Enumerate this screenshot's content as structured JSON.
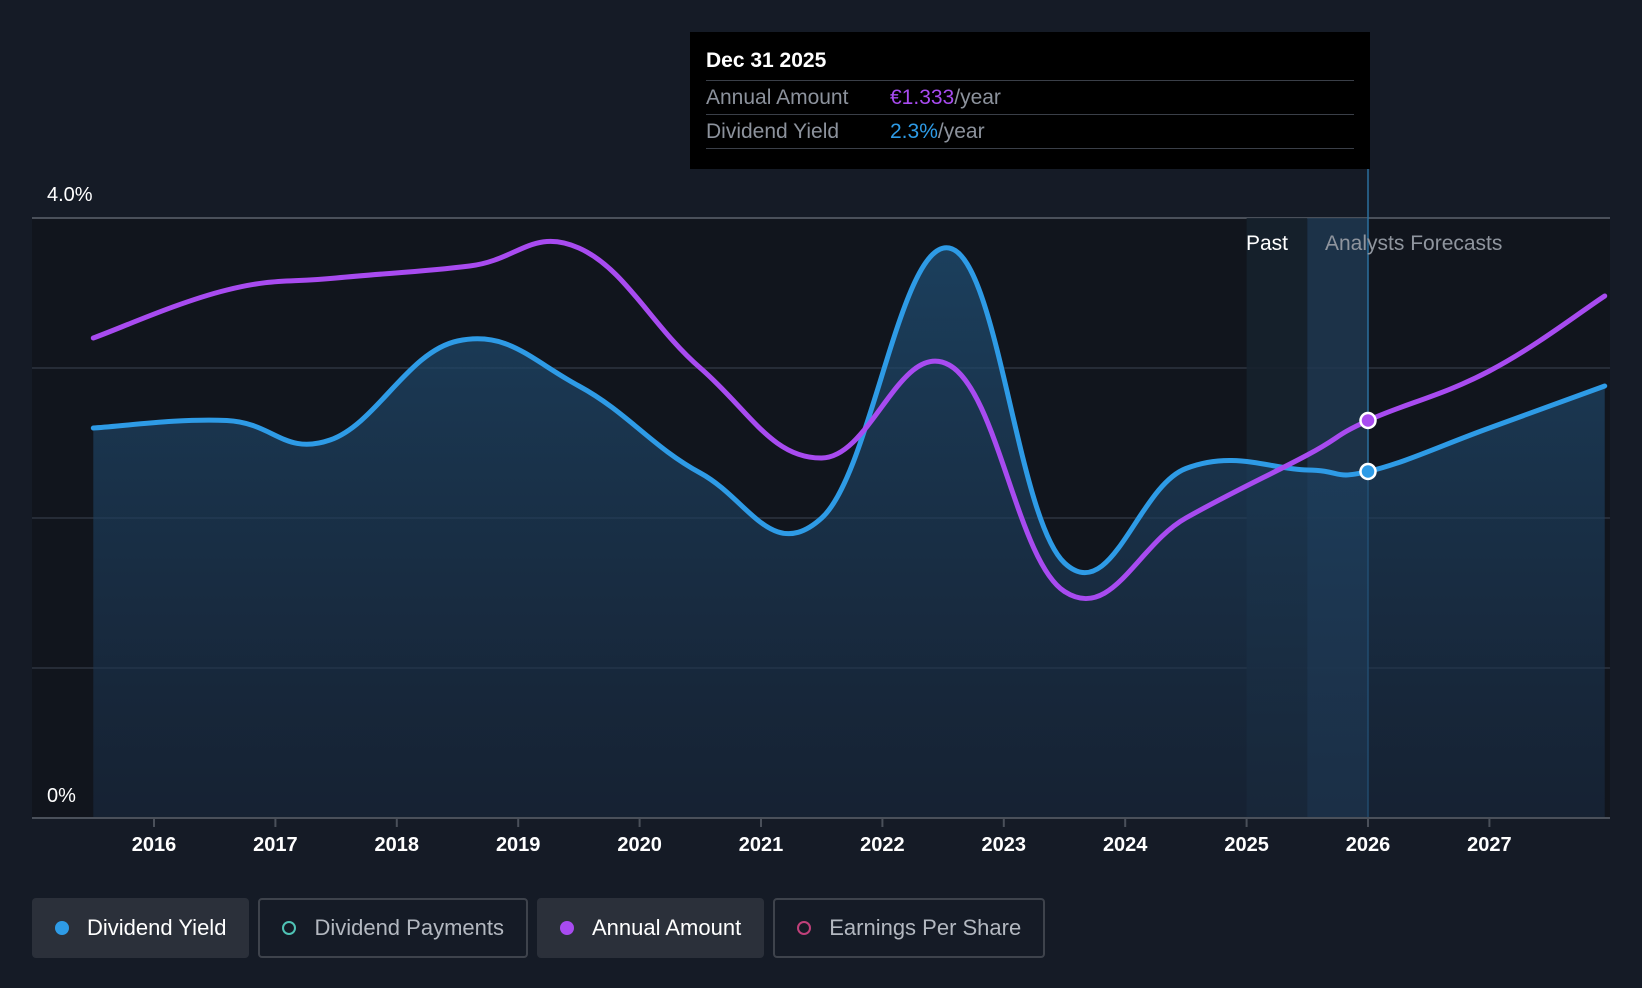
{
  "chart_data": {
    "type": "line",
    "y_axis": {
      "min_label": "0%",
      "max_label": "4.0%",
      "ylim": [
        0,
        4.0
      ],
      "gridlines": [
        0,
        1.0,
        2.0,
        3.0,
        4.0
      ]
    },
    "x_ticks": [
      "2016",
      "2017",
      "2018",
      "2019",
      "2020",
      "2021",
      "2022",
      "2023",
      "2024",
      "2025",
      "2026",
      "2027"
    ],
    "xlim": [
      2015.0,
      2028.0
    ],
    "regions": {
      "past_label": "Past",
      "forecast_label": "Analysts Forecasts",
      "forecast_start": 2025.5,
      "now": 2026.0
    },
    "series": [
      {
        "name": "Dividend Yield",
        "color": "#2e9be6",
        "points": [
          [
            2015.5,
            2.6
          ],
          [
            2016.6,
            2.65
          ],
          [
            2017.45,
            2.52
          ],
          [
            2018.5,
            3.18
          ],
          [
            2019.5,
            2.88
          ],
          [
            2020.5,
            2.3
          ],
          [
            2021.5,
            2.0
          ],
          [
            2022.55,
            3.8
          ],
          [
            2023.5,
            1.7
          ],
          [
            2024.5,
            2.33
          ],
          [
            2025.5,
            2.32
          ],
          [
            2026.0,
            2.31
          ],
          [
            2027.0,
            2.6
          ],
          [
            2027.95,
            2.88
          ]
        ]
      },
      {
        "name": "Annual Amount",
        "color": "#a84bf0",
        "points": [
          [
            2015.5,
            3.2
          ],
          [
            2016.6,
            3.52
          ],
          [
            2017.5,
            3.6
          ],
          [
            2018.6,
            3.68
          ],
          [
            2019.5,
            3.8
          ],
          [
            2020.5,
            3.0
          ],
          [
            2021.5,
            2.4
          ],
          [
            2022.55,
            3.02
          ],
          [
            2023.5,
            1.51
          ],
          [
            2024.5,
            2.0
          ],
          [
            2025.5,
            2.42
          ],
          [
            2026.0,
            2.65
          ],
          [
            2027.0,
            2.98
          ],
          [
            2027.95,
            3.48
          ]
        ]
      }
    ],
    "highlight_points": [
      {
        "series": "Annual Amount",
        "x": 2026.0,
        "y": 2.65
      },
      {
        "series": "Dividend Yield",
        "x": 2026.0,
        "y": 2.31
      }
    ]
  },
  "tooltip": {
    "date": "Dec 31 2025",
    "rows": [
      {
        "label": "Annual Amount",
        "value": "€1.333",
        "unit": "/year",
        "color": "#a84bf0"
      },
      {
        "label": "Dividend Yield",
        "value": "2.3%",
        "unit": "/year",
        "color": "#2e9be6"
      }
    ]
  },
  "legend": [
    {
      "label": "Dividend Yield",
      "active": true,
      "dot_color": "#2e9be6",
      "filled": true
    },
    {
      "label": "Dividend Payments",
      "active": false,
      "dot_color": "#4fc3b5",
      "filled": false
    },
    {
      "label": "Annual Amount",
      "active": true,
      "dot_color": "#a84bf0",
      "filled": true
    },
    {
      "label": "Earnings Per Share",
      "active": false,
      "dot_color": "#c0407a",
      "filled": false
    }
  ]
}
